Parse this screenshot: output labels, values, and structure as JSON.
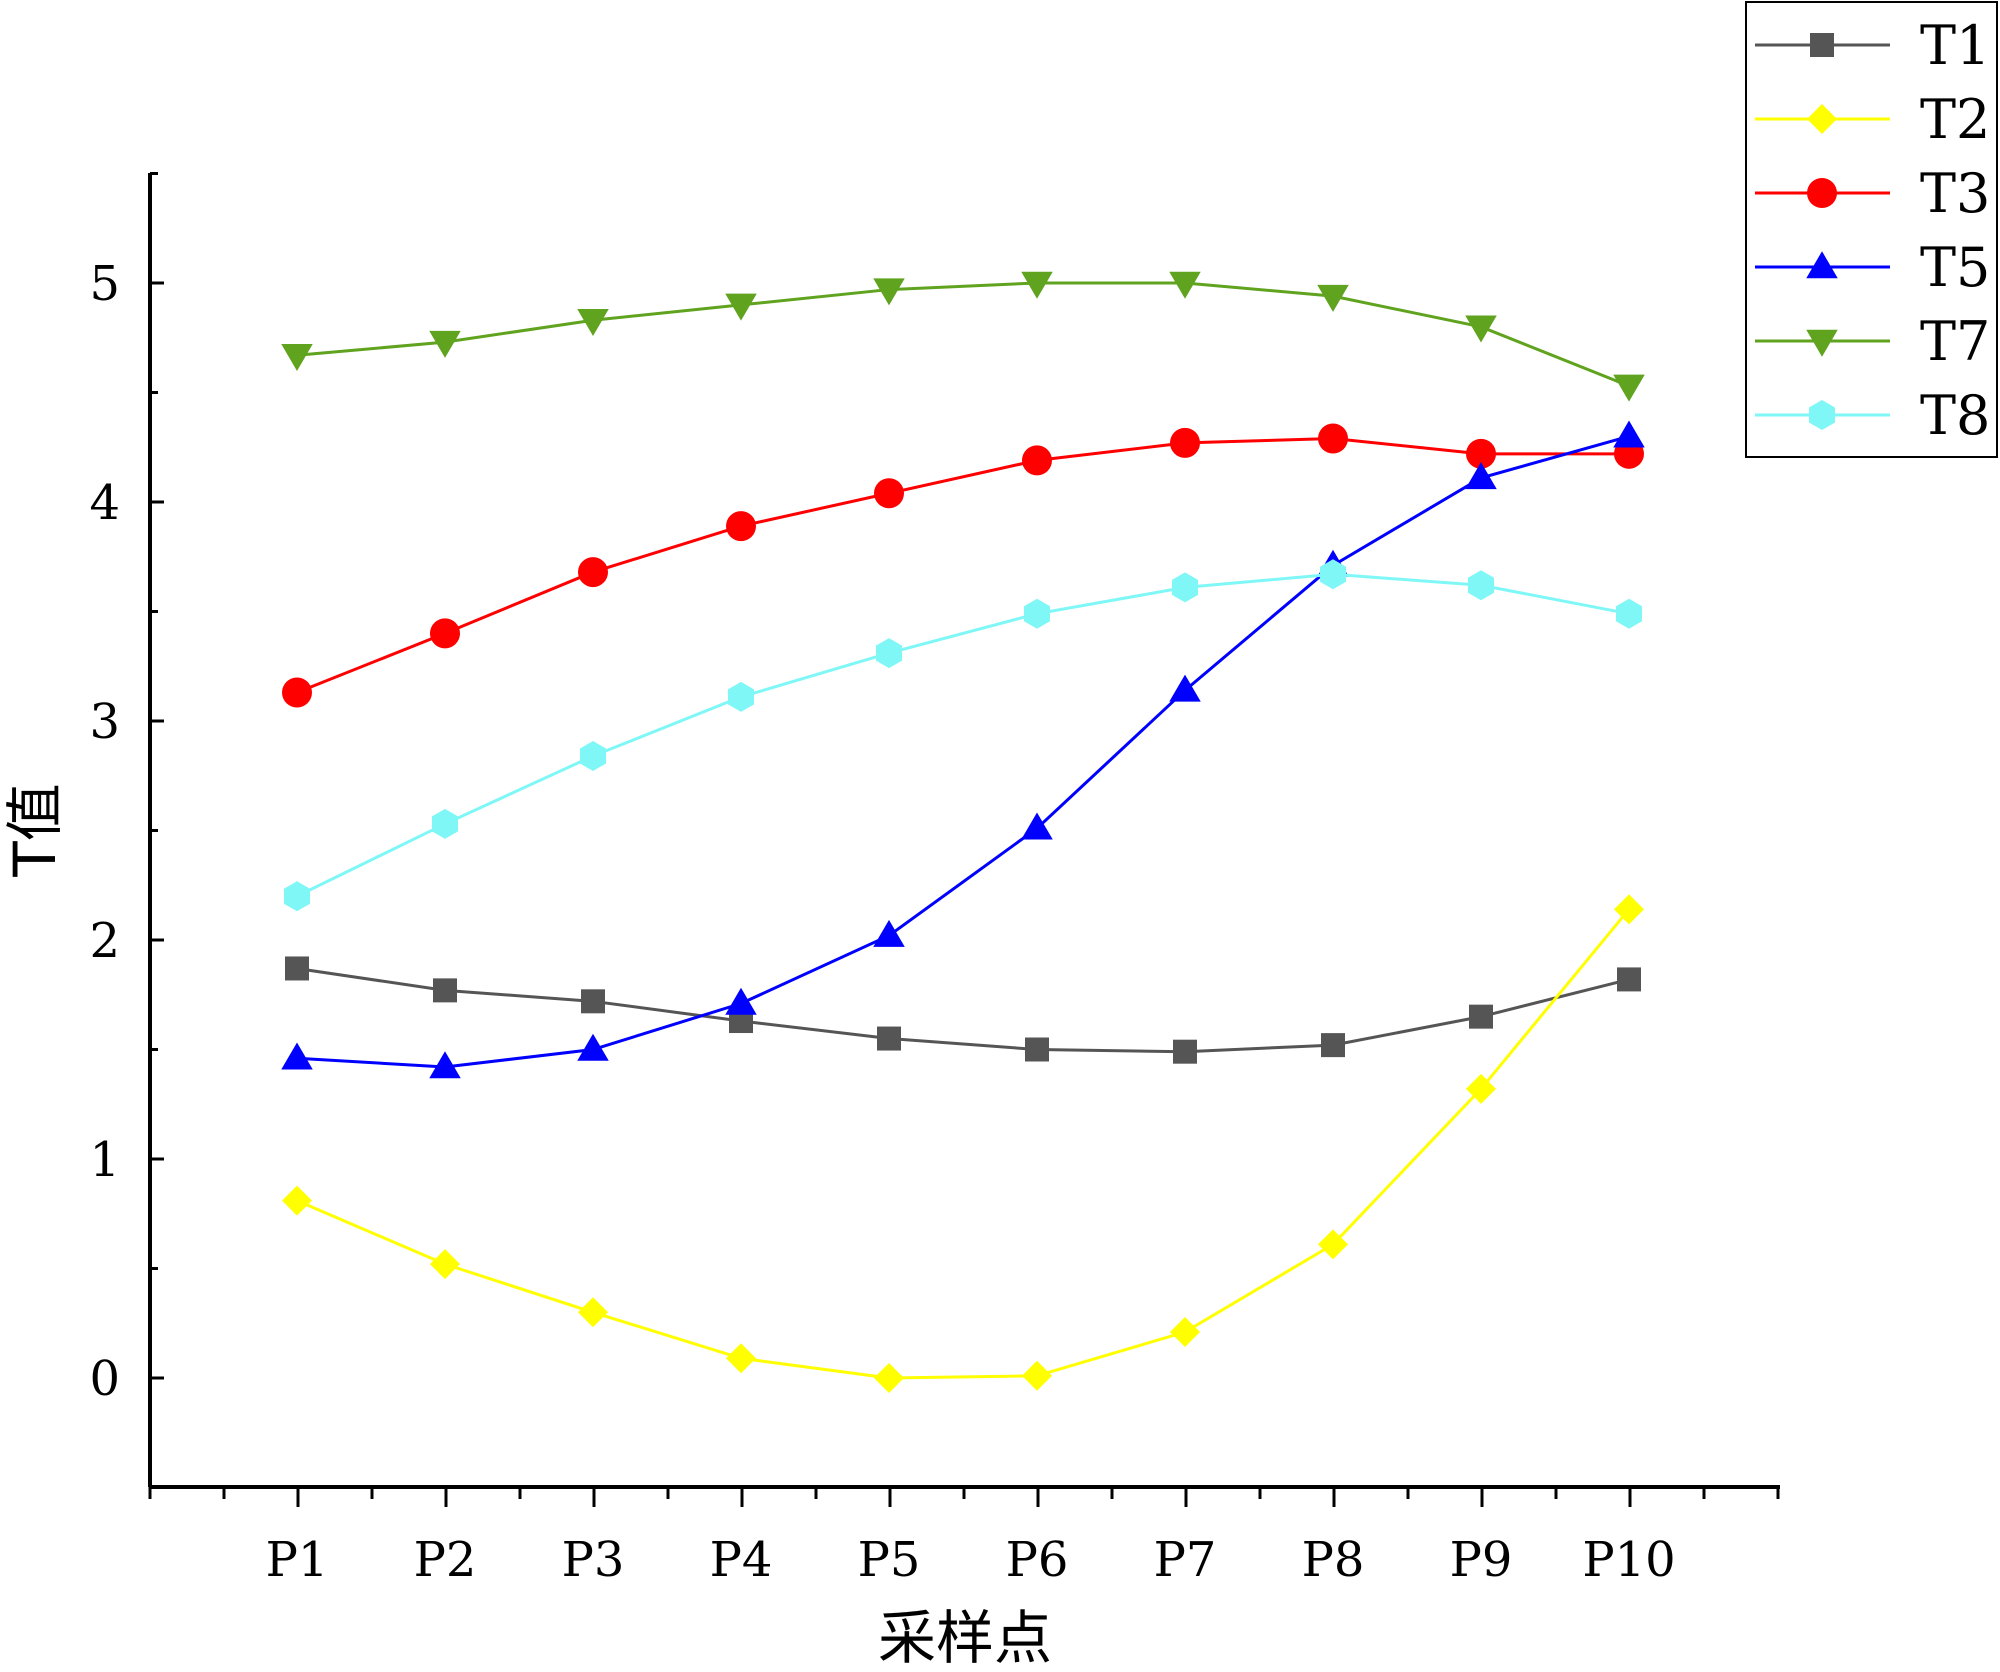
{
  "chart_data": {
    "type": "line",
    "title": "",
    "xlabel": "采样点",
    "ylabel": "T值",
    "categories": [
      "P1",
      "P2",
      "P3",
      "P4",
      "P5",
      "P6",
      "P7",
      "P8",
      "P9",
      "P10"
    ],
    "ylim": [
      -0.5,
      5.5
    ],
    "yticks": [
      0,
      1,
      2,
      3,
      4,
      5
    ],
    "grid": false,
    "legend_position": "top-right",
    "series": [
      {
        "name": "T1",
        "color": "#555555",
        "marker": "square",
        "values": [
          1.87,
          1.77,
          1.72,
          1.63,
          1.55,
          1.5,
          1.49,
          1.52,
          1.65,
          1.82
        ]
      },
      {
        "name": "T2",
        "color": "#ffff00",
        "marker": "diamond",
        "values": [
          0.81,
          0.52,
          0.3,
          0.09,
          0.0,
          0.01,
          0.21,
          0.61,
          1.32,
          2.14
        ]
      },
      {
        "name": "T3",
        "color": "#ff0000",
        "marker": "circle",
        "values": [
          3.13,
          3.4,
          3.68,
          3.89,
          4.04,
          4.19,
          4.27,
          4.29,
          4.22,
          4.22
        ]
      },
      {
        "name": "T5",
        "color": "#0000ff",
        "marker": "triangle-up",
        "values": [
          1.46,
          1.42,
          1.5,
          1.71,
          2.02,
          2.51,
          3.14,
          3.71,
          4.11,
          4.3
        ]
      },
      {
        "name": "T7",
        "color": "#5fa31f",
        "marker": "triangle-down",
        "values": [
          4.67,
          4.73,
          4.83,
          4.9,
          4.97,
          5.0,
          5.0,
          4.94,
          4.8,
          4.53
        ]
      },
      {
        "name": "T8",
        "color": "#7ff7f7",
        "marker": "hexagon",
        "values": [
          2.2,
          2.53,
          2.84,
          3.11,
          3.31,
          3.49,
          3.61,
          3.67,
          3.62,
          3.49
        ]
      }
    ]
  }
}
